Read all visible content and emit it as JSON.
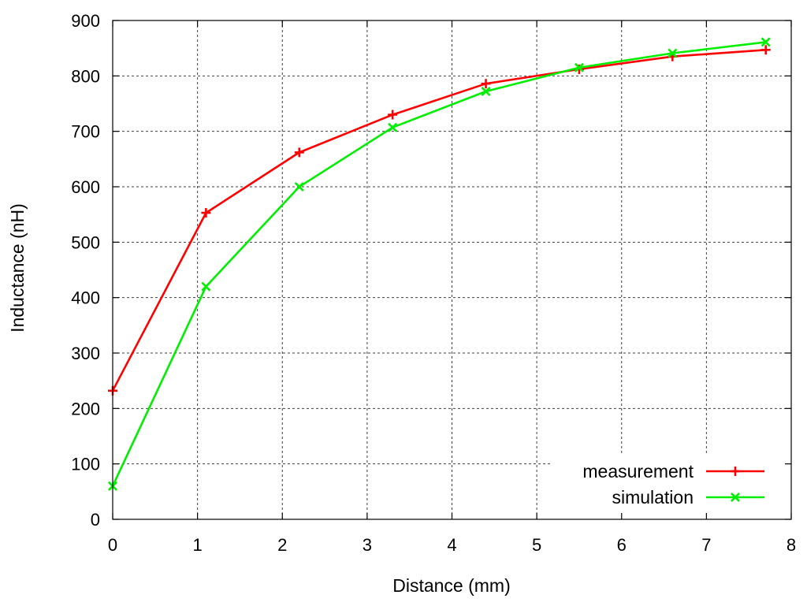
{
  "chart_data": {
    "type": "line",
    "title": "",
    "xlabel": "Distance (mm)",
    "ylabel": "Inductance (nH)",
    "xlim": [
      0,
      8
    ],
    "ylim": [
      0,
      900
    ],
    "xticks": [
      "0",
      "1",
      "2",
      "3",
      "4",
      "5",
      "6",
      "7",
      "8"
    ],
    "yticks": [
      "0",
      "100",
      "200",
      "300",
      "400",
      "500",
      "600",
      "700",
      "800",
      "900"
    ],
    "grid": true,
    "legend_position": "bottom-right",
    "series": [
      {
        "name": "measurement",
        "color": "#ff0000",
        "marker": "plus",
        "x": [
          0,
          1.1,
          2.2,
          3.3,
          4.4,
          5.5,
          6.6,
          7.7
        ],
        "y": [
          232,
          553,
          662,
          730,
          786,
          812,
          835,
          847
        ]
      },
      {
        "name": "simulation",
        "color": "#00ee00",
        "marker": "cross",
        "x": [
          0,
          1.1,
          2.2,
          3.3,
          4.4,
          5.5,
          6.6,
          7.7
        ],
        "y": [
          60,
          420,
          600,
          707,
          772,
          815,
          841,
          861
        ]
      }
    ]
  }
}
